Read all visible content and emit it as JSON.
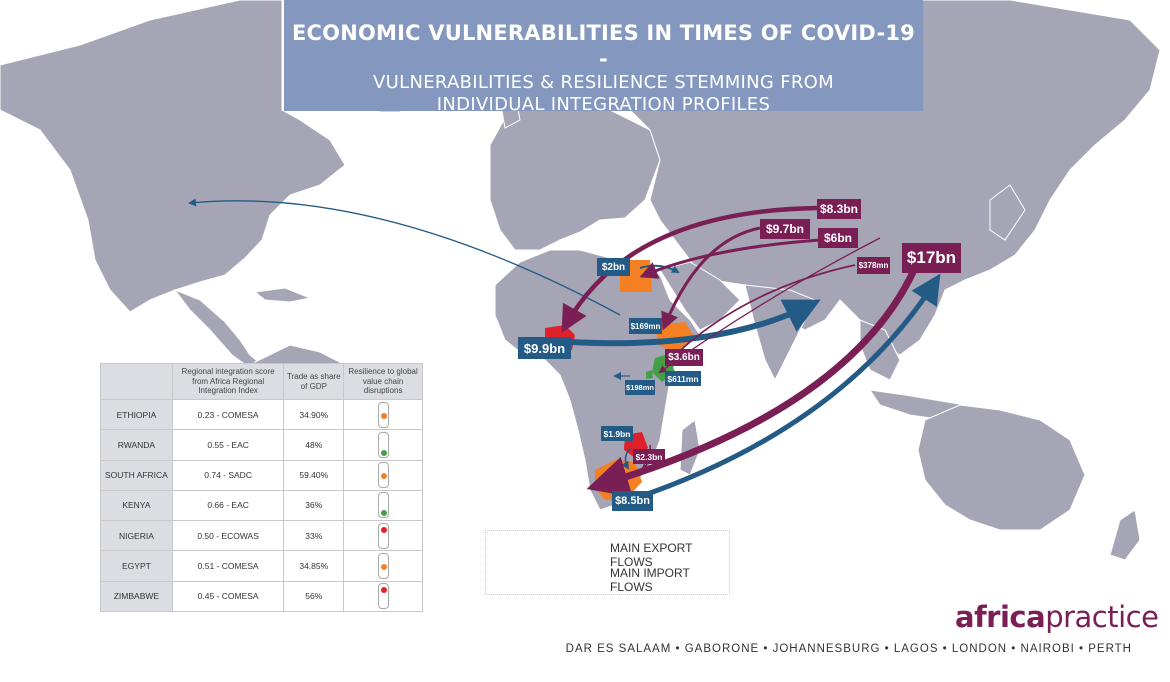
{
  "title": {
    "line1": "ECONOMIC VULNERABILITIES IN TIMES OF COVID-19 -",
    "line2": "VULNERABILITIES & RESILIENCE STEMMING FROM",
    "line3": "INDIVIDUAL INTEGRATION PROFILES"
  },
  "colors": {
    "export": "#235b86",
    "import": "#7a1f55",
    "land": "#a6a5b6",
    "title_bg": "#8497bf",
    "ethiopia": "#f57f23",
    "rwanda": "#43a047",
    "south_africa": "#f57f23",
    "kenya": "#43a047",
    "nigeria": "#e0202a",
    "egypt": "#f57f23",
    "zimbabwe": "#e0202a"
  },
  "flows": {
    "export": [
      {
        "label": "$9.9bn",
        "country": "Nigeria"
      },
      {
        "label": "$2bn",
        "country": "Egypt"
      },
      {
        "label": "$169mn",
        "country": "Ethiopia"
      },
      {
        "label": "$198mn",
        "country": "Rwanda"
      },
      {
        "label": "$1.9bn",
        "country": "Zimbabwe"
      },
      {
        "label": "$8.5bn",
        "country": "South Africa"
      },
      {
        "label": "$611mn",
        "country": "Kenya"
      }
    ],
    "import": [
      {
        "label": "$8.3bn",
        "country": "Nigeria"
      },
      {
        "label": "$9.7bn",
        "country": "Ethiopia"
      },
      {
        "label": "$6bn",
        "country": "Egypt"
      },
      {
        "label": "$378mn",
        "country": "Rwanda"
      },
      {
        "label": "$17bn",
        "country": "South Africa"
      },
      {
        "label": "$3.6bn",
        "country": "Kenya"
      },
      {
        "label": "$2.3bn",
        "country": "Zimbabwe"
      }
    ]
  },
  "table": {
    "headers": [
      "",
      "Regional integration score from Africa Regional Integration Index",
      "Trade as share of GDP",
      "Resilience to global value chain disruptions"
    ],
    "rows": [
      {
        "country": "ETHIOPIA",
        "score": "0.23 - COMESA",
        "trade": "34.90%",
        "light": "amber"
      },
      {
        "country": "RWANDA",
        "score": "0.55 - EAC",
        "trade": "48%",
        "light": "green"
      },
      {
        "country": "SOUTH AFRICA",
        "score": "0.74 - SADC",
        "trade": "59.40%",
        "light": "amber"
      },
      {
        "country": "KENYA",
        "score": "0.66 - EAC",
        "trade": "36%",
        "light": "green"
      },
      {
        "country": "NIGERIA",
        "score": "0.50 - ECOWAS",
        "trade": "33%",
        "light": "red"
      },
      {
        "country": "EGYPT",
        "score": "0.51 - COMESA",
        "trade": "34.85%",
        "light": "amber"
      },
      {
        "country": "ZIMBABWE",
        "score": "0.45 - COMESA",
        "trade": "56%",
        "light": "red"
      }
    ]
  },
  "legend": {
    "export": "MAIN EXPORT FLOWS",
    "import": "MAIN IMPORT FLOWS"
  },
  "brand": {
    "part1": "africa",
    "part2": "practice",
    "cities": "DAR ES SALAAM • GABORONE • JOHANNESBURG • LAGOS • LONDON • NAIROBI • PERTH"
  }
}
